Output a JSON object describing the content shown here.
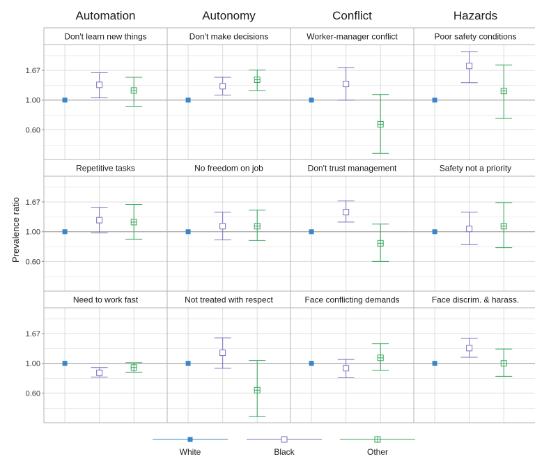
{
  "chart_data": {
    "type": "scatter",
    "subtype": "point-range facets (log-scale y)",
    "ylabel": "Prevalence ratio",
    "y_scale": "log",
    "ylim": [
      0.36,
      2.6
    ],
    "y_ticks": [
      0.6,
      1.0,
      1.67
    ],
    "y_tick_labels": [
      "0.60",
      "1.00",
      "1.67"
    ],
    "reference_line": 1.0,
    "columns": [
      "Automation",
      "Autonomy",
      "Conflict",
      "Hazards"
    ],
    "legend": {
      "placement": "bottom",
      "series": [
        {
          "name": "White",
          "color": "#3a86c8",
          "marker": "filled-square"
        },
        {
          "name": "Black",
          "color": "#7b6fc0",
          "marker": "open-square"
        },
        {
          "name": "Other",
          "color": "#34a45a",
          "marker": "crossed-square"
        }
      ]
    },
    "panels": [
      {
        "title": "Don't learn new things",
        "est": [
          1.0,
          1.3,
          1.18
        ],
        "low": [
          1.0,
          1.04,
          0.9
        ],
        "high": [
          1.0,
          1.6,
          1.48
        ]
      },
      {
        "title": "Don't make decisions",
        "est": [
          1.0,
          1.27,
          1.42
        ],
        "low": [
          1.0,
          1.09,
          1.18
        ],
        "high": [
          1.0,
          1.48,
          1.68
        ]
      },
      {
        "title": "Worker-manager conflict",
        "est": [
          1.0,
          1.32,
          0.66
        ],
        "low": [
          1.0,
          1.0,
          0.4
        ],
        "high": [
          1.0,
          1.75,
          1.1
        ]
      },
      {
        "title": "Poor safety conditions",
        "est": [
          1.0,
          1.8,
          1.17
        ],
        "low": [
          1.0,
          1.35,
          0.73
        ],
        "high": [
          1.0,
          2.3,
          1.83
        ]
      },
      {
        "title": "Repetitive tasks",
        "est": [
          1.0,
          1.22,
          1.18
        ],
        "low": [
          1.0,
          0.98,
          0.88
        ],
        "high": [
          1.0,
          1.52,
          1.6
        ]
      },
      {
        "title": "No freedom on job",
        "est": [
          1.0,
          1.1,
          1.1
        ],
        "low": [
          1.0,
          0.87,
          0.86
        ],
        "high": [
          1.0,
          1.4,
          1.45
        ]
      },
      {
        "title": "Don't trust management",
        "est": [
          1.0,
          1.4,
          0.82
        ],
        "low": [
          1.0,
          1.18,
          0.6
        ],
        "high": [
          1.0,
          1.7,
          1.14
        ]
      },
      {
        "title": "Safety not a priority",
        "est": [
          1.0,
          1.05,
          1.1
        ],
        "low": [
          1.0,
          0.8,
          0.76
        ],
        "high": [
          1.0,
          1.4,
          1.65
        ]
      },
      {
        "title": "Need to work fast",
        "est": [
          1.0,
          0.85,
          0.93
        ],
        "low": [
          1.0,
          0.79,
          0.86
        ],
        "high": [
          1.0,
          0.93,
          1.01
        ]
      },
      {
        "title": "Not treated with respect",
        "est": [
          1.0,
          1.2,
          0.63
        ],
        "low": [
          1.0,
          0.92,
          0.4
        ],
        "high": [
          1.0,
          1.55,
          1.05
        ]
      },
      {
        "title": "Face conflicting demands",
        "est": [
          1.0,
          0.92,
          1.1
        ],
        "low": [
          1.0,
          0.78,
          0.89
        ],
        "high": [
          1.0,
          1.07,
          1.4
        ]
      },
      {
        "title": "Face discrim. & harass.",
        "est": [
          1.0,
          1.3,
          1.0
        ],
        "low": [
          1.0,
          1.11,
          0.8
        ],
        "high": [
          1.0,
          1.54,
          1.28
        ]
      }
    ]
  }
}
